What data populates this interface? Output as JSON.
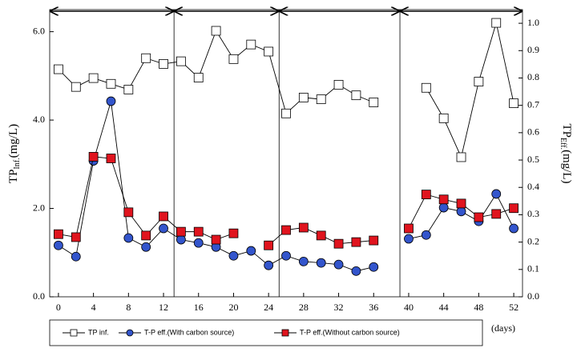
{
  "chart_data": {
    "type": "line",
    "x": [
      0,
      2,
      4,
      6,
      8,
      10,
      12,
      14,
      16,
      18,
      20,
      22,
      24,
      26,
      28,
      30,
      32,
      34,
      36,
      38,
      40,
      42,
      44,
      46,
      48,
      50,
      52
    ],
    "xlim": [
      -1,
      53
    ],
    "xticks": [
      0,
      4,
      8,
      12,
      16,
      20,
      24,
      28,
      32,
      36,
      40,
      44,
      48,
      52
    ],
    "xlabel": "(days)",
    "ylim": [
      0,
      6.5
    ],
    "yticks": [
      {
        "value": 0,
        "label": "0.0"
      },
      {
        "value": 2,
        "label": "2.0"
      },
      {
        "value": 4,
        "label": "4.0"
      },
      {
        "value": 6,
        "label": "6.0"
      }
    ],
    "y2lim": [
      0,
      1.05
    ],
    "y2ticks": [
      {
        "value": 0,
        "label": "0.0"
      },
      {
        "value": 0.1,
        "label": "0.1"
      },
      {
        "value": 0.2,
        "label": "0.2"
      },
      {
        "value": 0.3,
        "label": "0.3"
      },
      {
        "value": 0.4,
        "label": "0.4"
      },
      {
        "value": 0.5,
        "label": "0.5"
      },
      {
        "value": 0.6,
        "label": "0.6"
      },
      {
        "value": 0.7,
        "label": "0.7"
      },
      {
        "value": 0.8,
        "label": "0.8"
      },
      {
        "value": 0.9,
        "label": "0.9"
      },
      {
        "value": 1,
        "label": "1.0"
      }
    ],
    "ylabel": {
      "main": "TP",
      "sub": "Inf.",
      "unit": "(mg/L)"
    },
    "y2label": {
      "main": "TP",
      "sub": "Eff.",
      "unit": "(mg/L)"
    },
    "vlines": [
      13.2,
      25.2,
      39
    ],
    "series": [
      {
        "name": "TP inf.",
        "color": "#ffffff",
        "marker": "square",
        "axis": "y",
        "values": [
          5.15,
          4.75,
          4.95,
          4.82,
          4.69,
          5.4,
          5.27,
          5.33,
          4.96,
          6.02,
          5.38,
          5.71,
          5.55,
          4.15,
          4.51,
          4.47,
          4.8,
          4.56,
          4.4,
          null,
          null,
          4.73,
          4.04,
          3.16,
          4.87,
          6.2,
          4.38
        ]
      },
      {
        "name": "T-P eff.(With carbon source)",
        "color": "#3355cc",
        "marker": "circle",
        "axis": "y2",
        "values": [
          0.188,
          0.147,
          0.497,
          0.715,
          0.215,
          0.182,
          0.25,
          0.209,
          0.197,
          0.182,
          0.15,
          0.168,
          0.115,
          0.15,
          0.129,
          0.124,
          0.118,
          0.094,
          0.109,
          null,
          0.212,
          0.226,
          0.326,
          0.312,
          0.276,
          0.376,
          0.25
        ]
      },
      {
        "name": "T-P eff.(Without carbon source)",
        "color": "#e0141e",
        "marker": "square",
        "axis": "y2",
        "values": [
          0.229,
          0.218,
          0.512,
          0.506,
          0.309,
          0.224,
          0.294,
          0.238,
          0.238,
          0.209,
          0.232,
          null,
          0.188,
          0.244,
          0.253,
          0.224,
          0.194,
          0.2,
          0.206,
          null,
          0.25,
          0.374,
          0.356,
          0.341,
          0.291,
          0.303,
          0.324
        ]
      }
    ]
  }
}
